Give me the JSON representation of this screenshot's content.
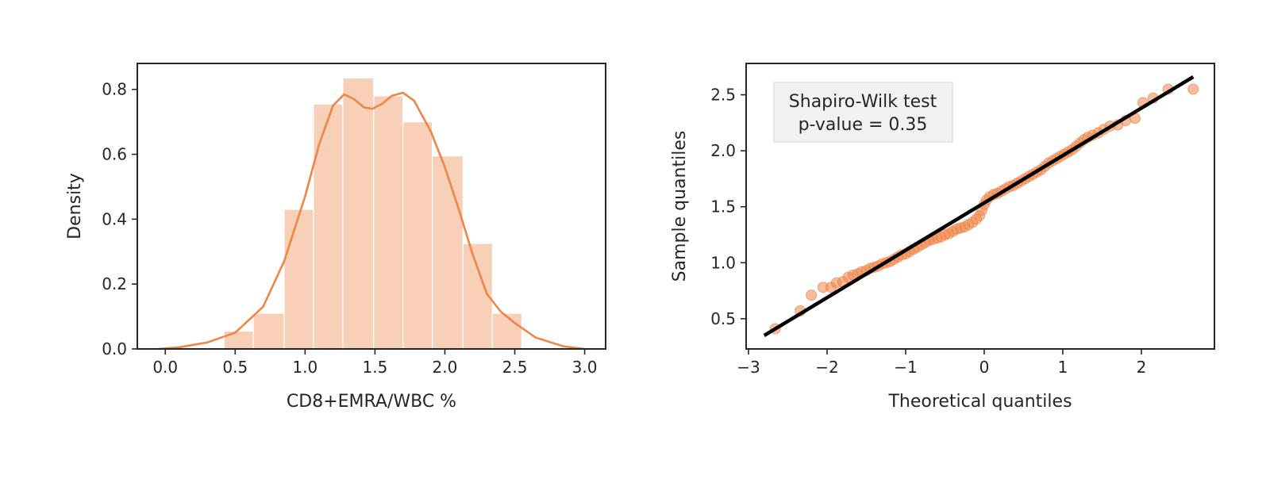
{
  "chart_data": [
    {
      "type": "bar",
      "subtype": "histogram-with-kde",
      "xlabel": "CD8+EMRA/WBC %",
      "ylabel": "Density",
      "xlim": [
        -0.2,
        3.15
      ],
      "ylim": [
        0,
        0.88
      ],
      "xticks": [
        0.0,
        0.5,
        1.0,
        1.5,
        2.0,
        2.5,
        3.0
      ],
      "xtick_labels": [
        "0.0",
        "0.5",
        "1.0",
        "1.5",
        "2.0",
        "2.5",
        "3.0"
      ],
      "yticks": [
        0.0,
        0.2,
        0.4,
        0.6,
        0.8
      ],
      "ytick_labels": [
        "0.0",
        "0.2",
        "0.4",
        "0.6",
        "0.8"
      ],
      "bins": [
        {
          "x0": 0.42,
          "x1": 0.63,
          "density": 0.055
        },
        {
          "x0": 0.63,
          "x1": 0.85,
          "density": 0.11
        },
        {
          "x0": 0.85,
          "x1": 1.06,
          "density": 0.43
        },
        {
          "x0": 1.06,
          "x1": 1.27,
          "density": 0.755
        },
        {
          "x0": 1.27,
          "x1": 1.49,
          "density": 0.835
        },
        {
          "x0": 1.49,
          "x1": 1.7,
          "density": 0.78
        },
        {
          "x0": 1.7,
          "x1": 1.91,
          "density": 0.7
        },
        {
          "x0": 1.91,
          "x1": 2.13,
          "density": 0.595
        },
        {
          "x0": 2.13,
          "x1": 2.34,
          "density": 0.325
        },
        {
          "x0": 2.34,
          "x1": 2.55,
          "density": 0.11
        }
      ],
      "kde": {
        "x": [
          -0.05,
          0.1,
          0.3,
          0.5,
          0.7,
          0.85,
          1.0,
          1.1,
          1.2,
          1.28,
          1.35,
          1.42,
          1.48,
          1.55,
          1.62,
          1.7,
          1.78,
          1.9,
          2.0,
          2.1,
          2.2,
          2.3,
          2.4,
          2.5,
          2.65,
          2.85,
          3.0
        ],
        "y": [
          0.0,
          0.005,
          0.02,
          0.05,
          0.13,
          0.27,
          0.47,
          0.63,
          0.75,
          0.785,
          0.77,
          0.745,
          0.74,
          0.755,
          0.78,
          0.79,
          0.765,
          0.67,
          0.56,
          0.43,
          0.29,
          0.17,
          0.115,
          0.08,
          0.035,
          0.008,
          0.0
        ]
      },
      "colors": {
        "bar_fill": "#f8cfb7",
        "kde_line": "#ef8548",
        "axis": "#262626"
      }
    },
    {
      "type": "scatter",
      "subtype": "qq-plot",
      "xlabel": "Theoretical quantiles",
      "ylabel": "Sample quantiles",
      "xlim": [
        -3.03,
        2.93
      ],
      "ylim": [
        0.23,
        2.78
      ],
      "xticks": [
        -3,
        -2,
        -1,
        0,
        1,
        2
      ],
      "xtick_labels": [
        "−3",
        "−2",
        "−1",
        "0",
        "1",
        "2"
      ],
      "yticks": [
        0.5,
        1.0,
        1.5,
        2.0,
        2.5
      ],
      "ytick_labels": [
        "0.5",
        "1.0",
        "1.5",
        "2.0",
        "2.5"
      ],
      "annotation": {
        "line1": "Shapiro-Wilk test",
        "line2": "p-value = 0.35"
      },
      "points": [
        [
          -2.66,
          0.41
        ],
        [
          -2.34,
          0.57
        ],
        [
          -2.2,
          0.71
        ],
        [
          -2.05,
          0.78
        ],
        [
          -1.95,
          0.78
        ],
        [
          -1.88,
          0.82
        ],
        [
          -1.8,
          0.83
        ],
        [
          -1.73,
          0.87
        ],
        [
          -1.67,
          0.89
        ],
        [
          -1.61,
          0.9
        ],
        [
          -1.56,
          0.92
        ],
        [
          -1.5,
          0.93
        ],
        [
          -1.45,
          0.95
        ],
        [
          -1.4,
          0.96
        ],
        [
          -1.35,
          0.97
        ],
        [
          -1.3,
          0.99
        ],
        [
          -1.25,
          1.0
        ],
        [
          -1.2,
          1.01
        ],
        [
          -1.15,
          1.03
        ],
        [
          -1.1,
          1.05
        ],
        [
          -1.05,
          1.07
        ],
        [
          -1.0,
          1.08
        ],
        [
          -0.95,
          1.1
        ],
        [
          -0.9,
          1.12
        ],
        [
          -0.85,
          1.14
        ],
        [
          -0.8,
          1.16
        ],
        [
          -0.75,
          1.18
        ],
        [
          -0.7,
          1.2
        ],
        [
          -0.65,
          1.21
        ],
        [
          -0.6,
          1.22
        ],
        [
          -0.55,
          1.23
        ],
        [
          -0.5,
          1.25
        ],
        [
          -0.45,
          1.26
        ],
        [
          -0.4,
          1.28
        ],
        [
          -0.35,
          1.3
        ],
        [
          -0.3,
          1.31
        ],
        [
          -0.25,
          1.32
        ],
        [
          -0.2,
          1.34
        ],
        [
          -0.15,
          1.36
        ],
        [
          -0.1,
          1.39
        ],
        [
          -0.06,
          1.42
        ],
        [
          -0.03,
          1.47
        ],
        [
          0.0,
          1.52
        ],
        [
          0.03,
          1.56
        ],
        [
          0.07,
          1.59
        ],
        [
          0.12,
          1.61
        ],
        [
          0.17,
          1.62
        ],
        [
          0.22,
          1.64
        ],
        [
          0.27,
          1.66
        ],
        [
          0.32,
          1.68
        ],
        [
          0.37,
          1.69
        ],
        [
          0.42,
          1.71
        ],
        [
          0.47,
          1.73
        ],
        [
          0.52,
          1.75
        ],
        [
          0.57,
          1.77
        ],
        [
          0.62,
          1.79
        ],
        [
          0.67,
          1.81
        ],
        [
          0.72,
          1.83
        ],
        [
          0.77,
          1.86
        ],
        [
          0.82,
          1.89
        ],
        [
          0.87,
          1.91
        ],
        [
          0.92,
          1.93
        ],
        [
          0.97,
          1.95
        ],
        [
          1.02,
          1.97
        ],
        [
          1.07,
          1.99
        ],
        [
          1.12,
          2.01
        ],
        [
          1.17,
          2.04
        ],
        [
          1.22,
          2.07
        ],
        [
          1.27,
          2.1
        ],
        [
          1.32,
          2.12
        ],
        [
          1.38,
          2.14
        ],
        [
          1.45,
          2.16
        ],
        [
          1.52,
          2.19
        ],
        [
          1.6,
          2.22
        ],
        [
          1.7,
          2.23
        ],
        [
          1.8,
          2.27
        ],
        [
          1.92,
          2.29
        ],
        [
          2.02,
          2.43
        ],
        [
          2.15,
          2.47
        ],
        [
          2.34,
          2.55
        ],
        [
          2.66,
          2.55
        ]
      ],
      "reference_line": {
        "x": [
          -2.8,
          2.66
        ],
        "y": [
          0.35,
          2.66
        ]
      },
      "colors": {
        "points": "#ef8548",
        "line": "#000000",
        "axis": "#262626",
        "legend_bg": "#f2f2f2"
      }
    }
  ]
}
